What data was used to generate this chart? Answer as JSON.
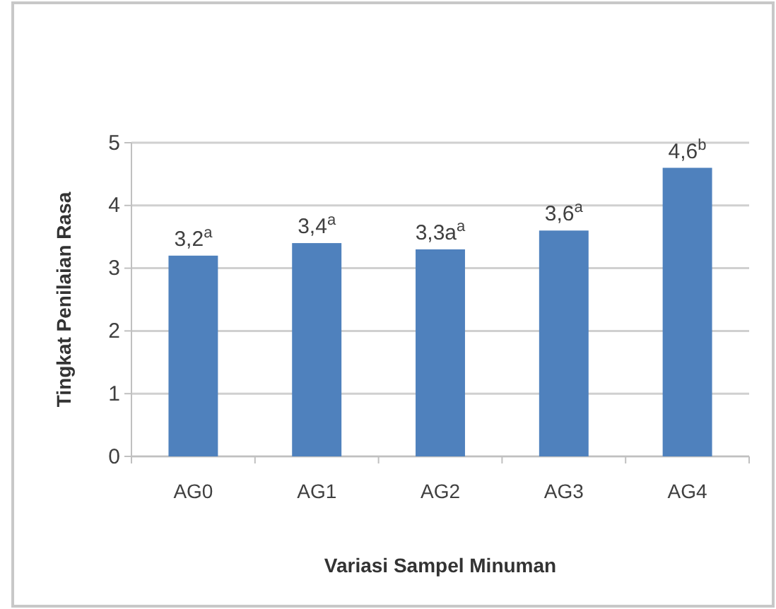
{
  "chart_data": {
    "type": "bar",
    "xlabel": "Variasi Sampel Minuman",
    "ylabel": "Tingkat Penilaian Rasa",
    "categories": [
      "AG0",
      "AG1",
      "AG2",
      "AG3",
      "AG4"
    ],
    "values": [
      3.2,
      3.4,
      3.3,
      3.6,
      4.6
    ],
    "value_labels": [
      "3,2$^{a}$",
      "3,4$^{a}$",
      "3,3a$^{a}$",
      "3,6$^{a}$",
      "4,6$^{b}$"
    ],
    "color": "#4f81bd",
    "ylim": [
      0,
      5
    ],
    "yticks": [
      0,
      1,
      2,
      3,
      4,
      5
    ],
    "grid": "y"
  }
}
